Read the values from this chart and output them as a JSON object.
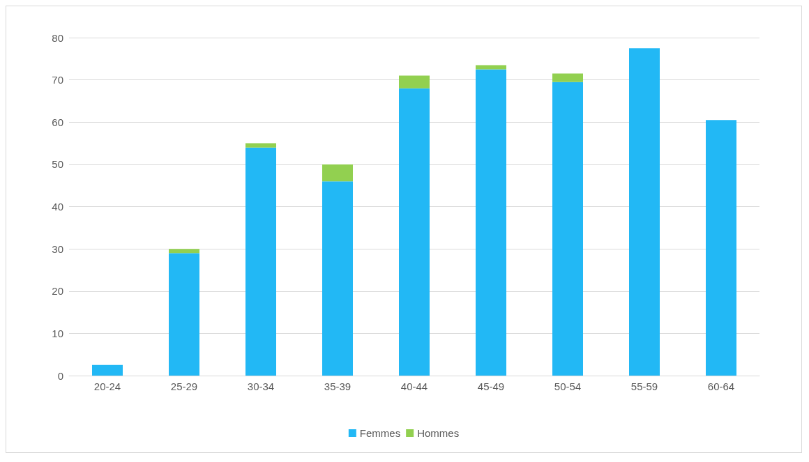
{
  "chart_data": {
    "type": "bar",
    "stacked": true,
    "categories": [
      "20-24",
      "25-29",
      "30-34",
      "35-39",
      "40-44",
      "45-49",
      "50-54",
      "55-59",
      "60-64"
    ],
    "series": [
      {
        "name": "Femmes",
        "color": "#22b8f5",
        "values": [
          2.5,
          29,
          54,
          46,
          68,
          72.5,
          69.5,
          77.5,
          60.5
        ]
      },
      {
        "name": "Hommes",
        "color": "#92d050",
        "values": [
          0,
          1,
          1,
          4,
          3,
          1,
          2,
          0,
          0
        ]
      }
    ],
    "ylim": [
      0,
      80
    ],
    "yticks": [
      0,
      10,
      20,
      30,
      40,
      50,
      60,
      70,
      80
    ],
    "grid": "y",
    "legend": "bottom"
  }
}
